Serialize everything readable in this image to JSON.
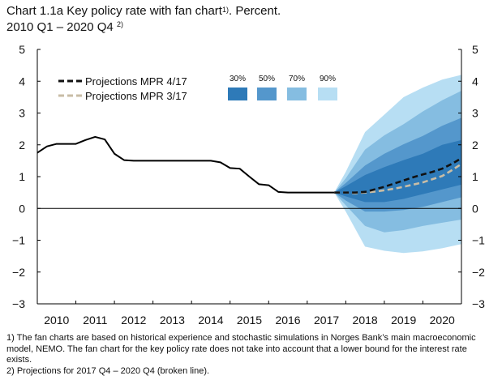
{
  "title": "Chart 1.1a Key policy rate with fan chart",
  "title_sup": "1)",
  "title_suffix": ". Percent.",
  "subtitle": "2010 Q1 – 2020 Q4",
  "subtitle_sup": "2)",
  "footnotes": [
    "1) The fan charts are based on historical experience and stochastic simulations in Norges Bank’s main macroeconomic model, NEMO. The fan chart for the key policy rate does not take into account that a lower bound for the interest rate exists.",
    "2) Projections for 2017 Q4 – 2020 Q4 (broken line)."
  ],
  "colors": {
    "fan_30": "#2e7ab8",
    "fan_50": "#5497cc",
    "fan_70": "#85bde1",
    "fan_90": "#b7def3",
    "mpr417": "#111111",
    "mpr317": "#c8bda6"
  },
  "chart_data": {
    "type": "line",
    "xlim": [
      2010.0,
      2021.0
    ],
    "ylim": [
      -3,
      5
    ],
    "y_ticks": [
      5,
      4,
      3,
      2,
      1,
      0,
      -1,
      -2,
      -3
    ],
    "y_tick_labels": [
      "5",
      "4",
      "3",
      "2",
      "1",
      "0",
      "−1",
      "−2",
      "−3"
    ],
    "x_tick_labels": [
      "2010",
      "2011",
      "2012",
      "2013",
      "2014",
      "2015",
      "2016",
      "2017",
      "2018",
      "2019",
      "2020"
    ],
    "legend": {
      "lines": [
        "Projections MPR 4/17",
        "Projections MPR 3/17"
      ],
      "fan_labels": [
        "30%",
        "50%",
        "70%",
        "90%"
      ]
    },
    "history": {
      "x": [
        2010.0,
        2010.25,
        2010.5,
        2010.75,
        2011.0,
        2011.25,
        2011.5,
        2011.75,
        2012.0,
        2012.25,
        2012.5,
        2012.75,
        2013.0,
        2014.5,
        2014.75,
        2015.0,
        2015.25,
        2015.5,
        2015.75,
        2016.0,
        2016.25,
        2016.5,
        2016.75,
        2017.0,
        2017.25,
        2017.5,
        2017.7
      ],
      "y": [
        1.75,
        1.95,
        2.03,
        2.03,
        2.03,
        2.15,
        2.25,
        2.17,
        1.72,
        1.52,
        1.5,
        1.5,
        1.5,
        1.5,
        1.45,
        1.27,
        1.25,
        1.0,
        0.76,
        0.73,
        0.52,
        0.5,
        0.5,
        0.5,
        0.5,
        0.5,
        0.5
      ]
    },
    "series": [
      {
        "name": "Projections MPR 4/17",
        "x": [
          2017.7,
          2018.0,
          2018.25,
          2018.5,
          2018.75,
          2019.0,
          2019.25,
          2019.5,
          2019.75,
          2020.0,
          2020.25,
          2020.5,
          2020.75,
          2021.0
        ],
        "y": [
          0.5,
          0.5,
          0.5,
          0.52,
          0.6,
          0.68,
          0.78,
          0.88,
          0.98,
          1.07,
          1.15,
          1.25,
          1.4,
          1.58
        ]
      },
      {
        "name": "Projections MPR 3/17",
        "x": [
          2017.7,
          2018.0,
          2018.25,
          2018.5,
          2018.75,
          2019.0,
          2019.25,
          2019.5,
          2019.75,
          2020.0,
          2020.25,
          2020.5,
          2020.75,
          2021.0
        ],
        "y": [
          0.5,
          0.5,
          0.48,
          0.5,
          0.53,
          0.57,
          0.62,
          0.68,
          0.75,
          0.82,
          0.92,
          1.02,
          1.2,
          1.4
        ]
      }
    ],
    "fan": {
      "x": [
        2017.7,
        2018.0,
        2018.5,
        2019.0,
        2019.5,
        2020.0,
        2020.5,
        2021.0
      ],
      "bands": [
        {
          "label": "90%",
          "upper": [
            0.5,
            1.15,
            2.4,
            2.95,
            3.5,
            3.8,
            4.05,
            4.2
          ],
          "lower": [
            0.5,
            -0.1,
            -1.2,
            -1.33,
            -1.4,
            -1.35,
            -1.25,
            -1.12
          ]
        },
        {
          "label": "70%",
          "upper": [
            0.5,
            0.95,
            1.85,
            2.3,
            2.65,
            3.05,
            3.4,
            3.7
          ],
          "lower": [
            0.5,
            0.1,
            -0.55,
            -0.75,
            -0.68,
            -0.55,
            -0.45,
            -0.35
          ]
        },
        {
          "label": "50%",
          "upper": [
            0.5,
            0.8,
            1.35,
            1.72,
            2.02,
            2.28,
            2.6,
            2.85
          ],
          "lower": [
            0.5,
            0.25,
            -0.1,
            -0.1,
            -0.05,
            0.05,
            0.2,
            0.35
          ]
        },
        {
          "label": "30%",
          "upper": [
            0.5,
            0.7,
            1.05,
            1.3,
            1.52,
            1.72,
            2.0,
            2.15
          ],
          "lower": [
            0.5,
            0.38,
            0.2,
            0.2,
            0.3,
            0.45,
            0.6,
            0.75
          ]
        }
      ]
    }
  }
}
